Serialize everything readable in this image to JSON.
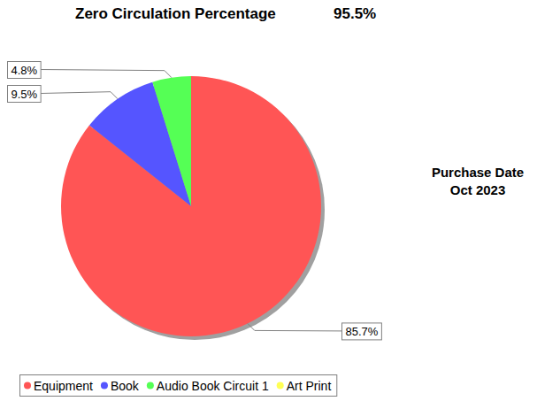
{
  "chart_data": {
    "type": "pie",
    "title": "Zero Circulation Percentage",
    "subtitle": "95.5%",
    "annotations": [
      "Purchase Date",
      "Oct 2023"
    ],
    "categories": [
      "Equipment",
      "Book",
      "Audio Book Circuit 1",
      "Art Print"
    ],
    "values": [
      85.7,
      9.5,
      4.8,
      0
    ],
    "value_labels": [
      "85.7%",
      "9.5%",
      "4.8%",
      null
    ],
    "colors": [
      "#ff5555",
      "#5555ff",
      "#55ff55",
      "#ffff55"
    ],
    "data_labels": true,
    "legend": "bottom"
  }
}
